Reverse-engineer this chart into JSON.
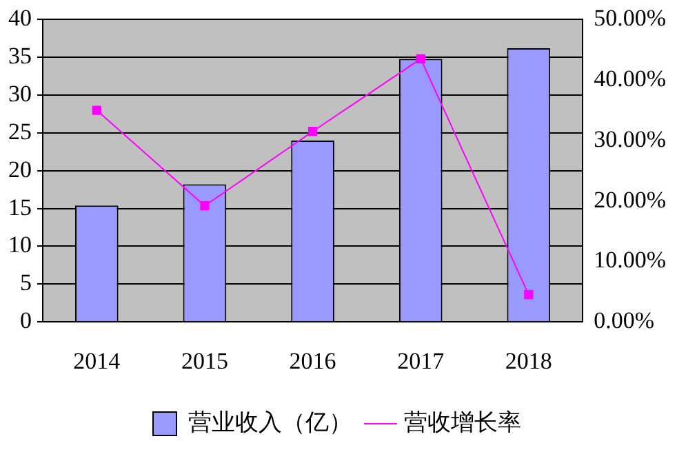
{
  "chart_data": {
    "type": "bar",
    "categories": [
      "2014",
      "2015",
      "2016",
      "2017",
      "2018"
    ],
    "series": [
      {
        "name": "营业收入（亿）",
        "color": "#9999ff",
        "values": [
          15.4,
          18.2,
          24.0,
          34.8,
          36.2
        ]
      },
      {
        "name": "营收增长率",
        "type": "line",
        "axis": "y2",
        "color": "#ff00ff",
        "marker": "square",
        "values": [
          35.0,
          19.2,
          31.5,
          43.5,
          4.5
        ]
      }
    ],
    "ylim": [
      0,
      40
    ],
    "yticks": [
      0,
      5,
      10,
      15,
      20,
      25,
      30,
      35,
      40
    ],
    "y2lim": [
      0,
      50
    ],
    "y2ticks": [
      {
        "value": 0,
        "label": "0.00%"
      },
      {
        "value": 10,
        "label": "10.00%"
      },
      {
        "value": 20,
        "label": "20.00%"
      },
      {
        "value": 30,
        "label": "30.00%"
      },
      {
        "value": 40,
        "label": "40.00%"
      },
      {
        "value": 50,
        "label": "50.00%"
      }
    ],
    "grid": "y",
    "legend": "bottom"
  }
}
